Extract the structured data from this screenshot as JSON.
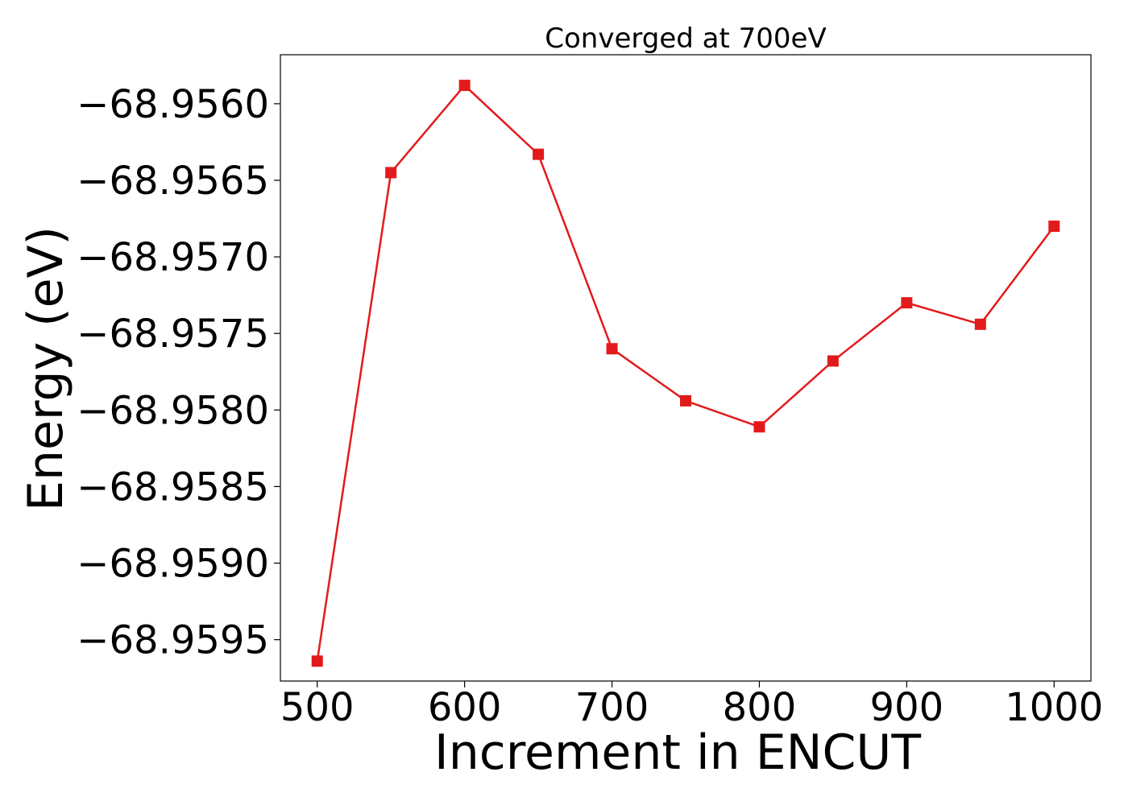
{
  "chart_data": {
    "type": "line",
    "title": "Converged at 700eV",
    "xlabel": "Increment in ENCUT",
    "ylabel": "Energy (eV)",
    "x": [
      500,
      550,
      600,
      650,
      700,
      750,
      800,
      850,
      900,
      950,
      1000
    ],
    "series": [
      {
        "values": [
          -68.95964,
          -68.95645,
          -68.95588,
          -68.95633,
          -68.9576,
          -68.95794,
          -68.95811,
          -68.95768,
          -68.9573,
          -68.95744,
          -68.9568
        ],
        "color": "#e31a1c",
        "marker": "square"
      }
    ],
    "xlim": [
      475,
      1025
    ],
    "ylim": [
      -68.95977,
      -68.95568
    ],
    "xticks": [
      500,
      600,
      700,
      800,
      900,
      1000
    ],
    "xtick_labels": [
      "500",
      "600",
      "700",
      "800",
      "900",
      "1000"
    ],
    "yticks": [
      -68.956,
      -68.9565,
      -68.957,
      -68.9575,
      -68.958,
      -68.9585,
      -68.959,
      -68.9595
    ],
    "ytick_labels": [
      "−68.9560",
      "−68.9565",
      "−68.9570",
      "−68.9575",
      "−68.9580",
      "−68.9585",
      "−68.9590",
      "−68.9595"
    ],
    "grid": false,
    "legend": "none"
  }
}
